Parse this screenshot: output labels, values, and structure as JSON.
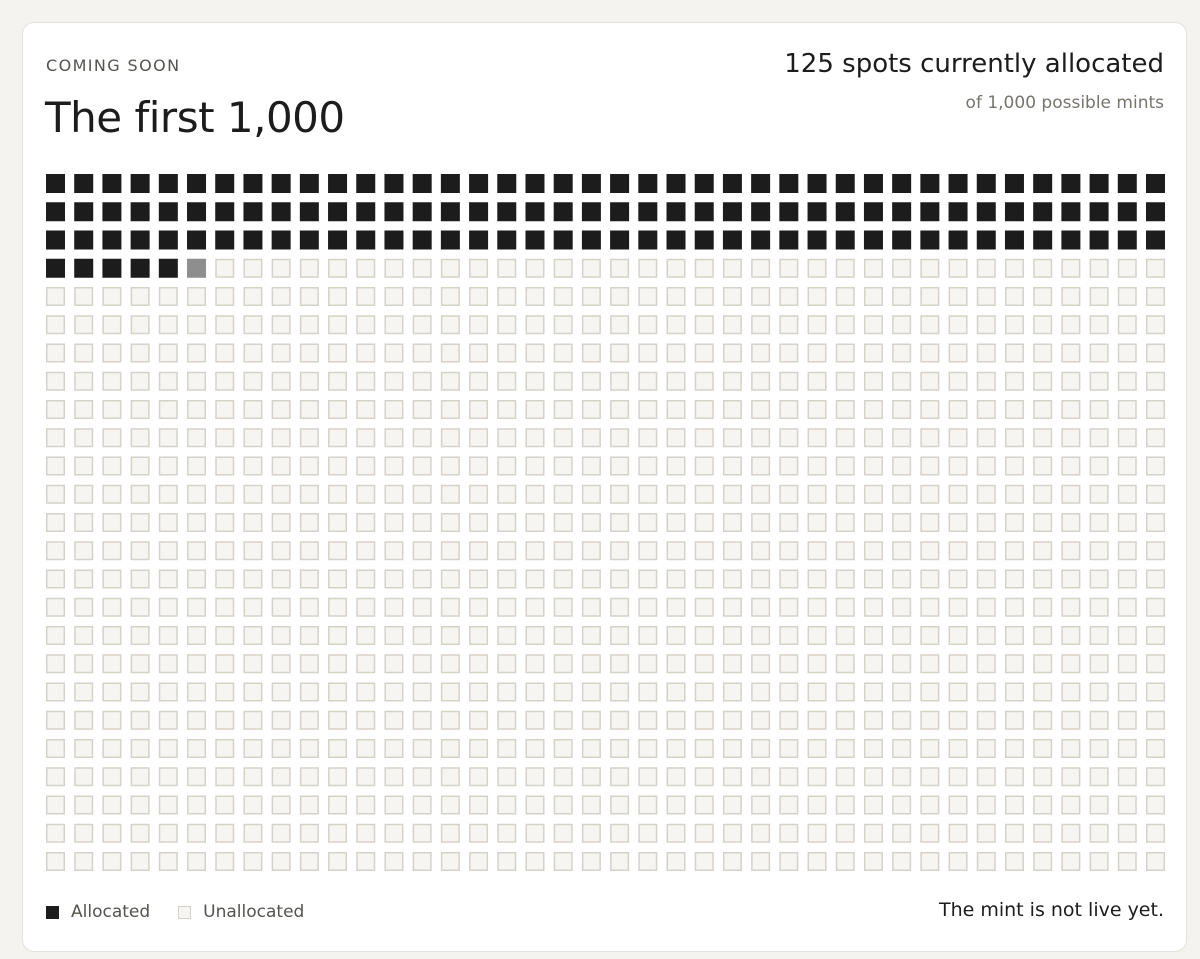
{
  "header": {
    "eyebrow": "COMING SOON",
    "title": "The first 1,000",
    "headline": "125 spots currently allocated",
    "subline": "of 1,000 possible mints"
  },
  "legend": {
    "allocated_label": "Allocated",
    "unallocated_label": "Unallocated"
  },
  "status_text": "The mint is not live yet.",
  "colors": {
    "allocated": "#1c1c1c",
    "highlight": "#8e8e8e",
    "unallocated_fill": "#f6f5f1",
    "unallocated_border": "#d5d2ca"
  },
  "chart_data": {
    "type": "waffle",
    "total": 1000,
    "columns": 40,
    "rows": 25,
    "allocated": 125,
    "highlighted_index": 125,
    "categories": [
      "Allocated",
      "Unallocated"
    ],
    "values": [
      125,
      875
    ]
  }
}
